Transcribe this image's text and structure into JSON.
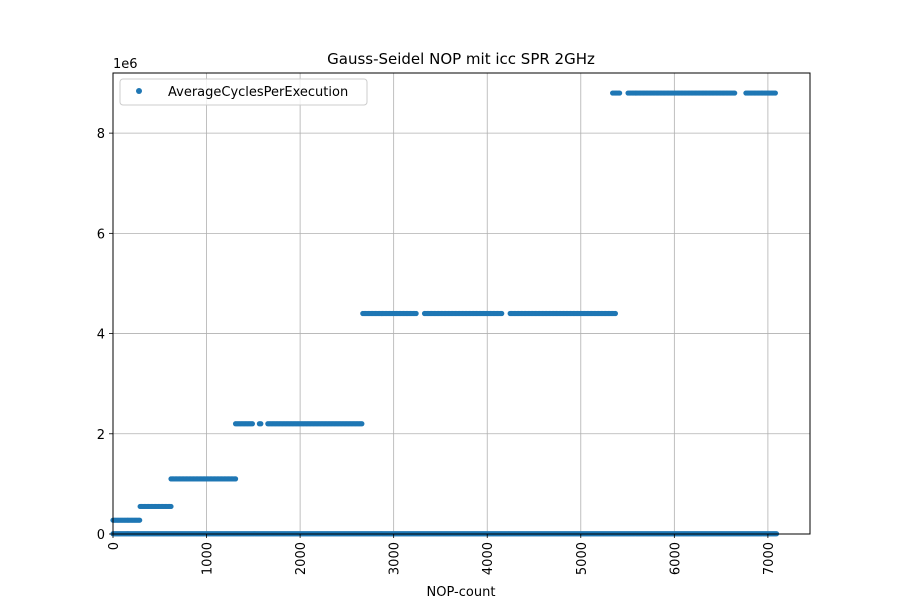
{
  "chart_data": {
    "type": "scatter",
    "title": "Gauss-Seidel NOP mit icc SPR 2GHz",
    "xlabel": "NOP-count",
    "ylabel": "",
    "y_offset_text": "1e6",
    "xlim": [
      0,
      7450
    ],
    "ylim": [
      0,
      9.2
    ],
    "xticks": [
      0,
      1000,
      2000,
      3000,
      4000,
      5000,
      6000,
      7000
    ],
    "yticks": [
      0,
      2,
      4,
      6,
      8
    ],
    "grid": true,
    "legend": "upper-left",
    "colors": {
      "series": "#1f77b4",
      "grid": "#b0b0b0",
      "axis": "#000000"
    },
    "series": [
      {
        "name": "AverageCyclesPerExecution",
        "levels": [
          {
            "y": 0.275,
            "x_start": 0,
            "x_end": 290,
            "step": 15
          },
          {
            "y": 0.55,
            "x_start": 290,
            "x_end": 620,
            "step": 15
          },
          {
            "y": 1.1,
            "x_start": 620,
            "x_end": 1310,
            "step": 15
          },
          {
            "y": 2.2,
            "x_start": 1310,
            "x_end": 2670,
            "step": 15,
            "gaps": [
              [
                1500,
                1560
              ],
              [
                1590,
                1650
              ]
            ]
          },
          {
            "y": 4.4,
            "x_start": 2670,
            "x_end": 5380,
            "step": 15,
            "gaps": [
              [
                3250,
                3330
              ],
              [
                4160,
                4240
              ]
            ]
          },
          {
            "y": 8.8,
            "x_start": 5340,
            "x_end": 7090,
            "step": 15,
            "gaps": [
              [
                5420,
                5500
              ],
              [
                6650,
                6760
              ]
            ]
          },
          {
            "y": 0.005,
            "x_start": 0,
            "x_end": 7100,
            "step": 12
          }
        ]
      }
    ]
  }
}
